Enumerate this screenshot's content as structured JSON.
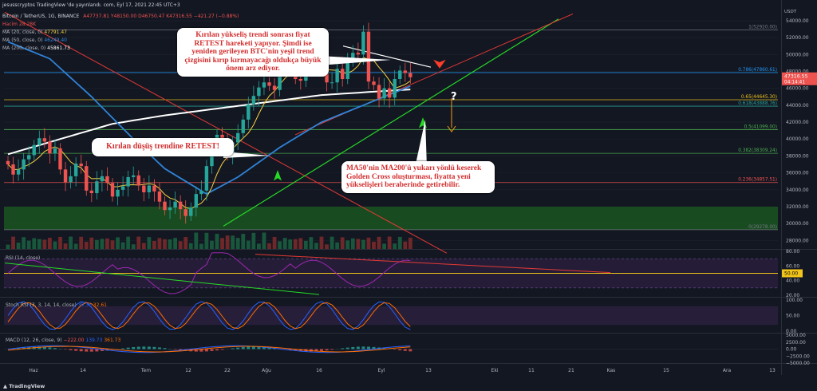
{
  "header": {
    "published": "jesusscryptos TradingView 'de yayınlandı. com, Eyl 17, 2021 22:45 UTC+3",
    "symbol": "Bitcoin / TetherUS, 1G, BINANCE",
    "ohlc": "A47737.81 Y48150.00 D46750.47 K47316.55 −421.27 (−0.88%)",
    "volume": "Hacim 28.28K",
    "ma20": "MA (20, close, 0)",
    "ma20_val": "47791.47",
    "ma50": "MA (50, close, 0)",
    "ma50_val": "46249.40",
    "ma200": "MA (200, close, 0)",
    "ma200_val": "45861.73"
  },
  "callouts": {
    "top": "Kırılan yükseliş trendi sonrası fiyat RETEST hareketi yapıyor. Şimdi ise yeniden gerileyen BTC'nin yeşil trend çizgisini kırıp kırmayacağı oldukça büyük önem arz ediyor.",
    "left": "Kırılan düşüş trendine RETEST!",
    "bottom": "MA50'nin MA200'ü yukarı yönlü keserek Golden Cross oluşturması, fiyatta yeni yükselişleri beraberinde getirebilir."
  },
  "footer": {
    "brand": "TradingView"
  },
  "colors": {
    "bg": "#131722",
    "up": "#26a69a",
    "down": "#ef5350",
    "ma20": "#f5d142",
    "ma50": "#2f84d8",
    "ma200": "#ffffff",
    "zone": "#1b5e20",
    "trend_green": "#26d926",
    "trend_red": "#e53935",
    "rsi": "#9c27b0",
    "macd": "#2962ff",
    "signal": "#ff6d00"
  },
  "chart_data": [
    {
      "type": "line",
      "title": "Bitcoin / TetherUS, 1G, BINANCE",
      "xlabel": "",
      "ylabel": "",
      "currency_unit": "USDT",
      "ylim": [
        27000,
        55500
      ],
      "x_ticks": [
        "Haz",
        "14",
        "Tem",
        "12",
        "22",
        "Ağu",
        "16",
        "Eyl",
        "13",
        "Eki",
        "11",
        "21",
        "Kas",
        "15",
        "Ara",
        "13"
      ],
      "y_ticks": [
        28000,
        30000,
        32000,
        34000,
        36000,
        38000,
        40000,
        42000,
        44000,
        46000,
        48000,
        50000,
        52000,
        54000
      ],
      "last_price": "47316.55",
      "countdown": "04:14:41",
      "fib_levels": [
        {
          "label": "1(52920.00)",
          "value": 52920
        },
        {
          "label": "0.786(47860.61)",
          "value": 47860.61
        },
        {
          "label": "0.65(44645.30)",
          "value": 44645.3
        },
        {
          "label": "0.618(43888.76)",
          "value": 43888.76
        },
        {
          "label": "0.5(41099.00)",
          "value": 41099
        },
        {
          "label": "0.382(38309.24)",
          "value": 38309.24
        },
        {
          "label": "0.236(34857.51)",
          "value": 34857.51
        },
        {
          "label": "0(29278.00)",
          "value": 29278
        }
      ],
      "price_path": [
        37000,
        35800,
        36400,
        37600,
        38100,
        39300,
        40100,
        39700,
        38300,
        38900,
        36400,
        34900,
        35600,
        37100,
        36800,
        33900,
        33600,
        35000,
        35600,
        34800,
        33200,
        34000,
        34400,
        35500,
        35700,
        34500,
        33700,
        34500,
        33800,
        32600,
        31600,
        31900,
        32600,
        31700,
        30900,
        31900,
        33500,
        33900,
        36800,
        38600,
        40500,
        39400,
        38200,
        39600,
        40700,
        42300,
        44100,
        45100,
        46100,
        46700,
        46300,
        45800,
        48800,
        49300,
        49400,
        47100,
        46900,
        48600,
        48900,
        49800,
        48300,
        46700,
        46700,
        48300,
        47100,
        49600,
        50200,
        50000,
        52700,
        46800,
        46400,
        44800,
        46000,
        44900,
        47100,
        48100,
        47800,
        47316
      ],
      "series": [
        {
          "name": "MA (20, close, 0)",
          "values": "computed from price_path"
        },
        {
          "name": "MA (50, close, 0)"
        },
        {
          "name": "MA (200, close, 0)"
        }
      ]
    },
    {
      "type": "line",
      "title": "RSI (14, close)",
      "ylim": [
        20,
        80
      ],
      "y_ticks": [
        80,
        60,
        40,
        20
      ],
      "last_value": "50.00"
    },
    {
      "type": "line",
      "title": "Stoch RSI (3, 3, 14, 14, close)",
      "values_label": [
        "39.36",
        "32.61"
      ],
      "y_ticks": [
        100,
        50,
        0
      ],
      "ylim": [
        0,
        100
      ]
    },
    {
      "type": "bar",
      "title": "MACD (12, 26, close, 9)",
      "values_label": [
        "−222.00",
        "139.73",
        "361.73"
      ],
      "y_ticks": [
        "5000.00",
        "2500.00",
        "0.00",
        "−2500.00",
        "−5000.00"
      ],
      "ylim": [
        -5000,
        5000
      ]
    }
  ]
}
